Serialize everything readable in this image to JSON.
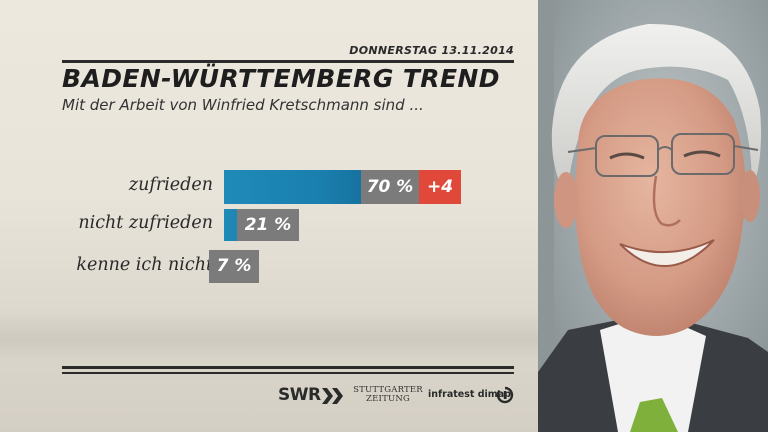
{
  "header": {
    "date": "DONNERSTAG 13.11.2014",
    "title": "BADEN-WÜRTTEMBERG TREND",
    "subtitle": "Mit der Arbeit von Winfried Kretschmann sind ..."
  },
  "chart_data": {
    "type": "bar",
    "orientation": "horizontal",
    "categories": [
      "zufrieden",
      "nicht zufrieden",
      "kenne ich nicht"
    ],
    "values": [
      70,
      21,
      7
    ],
    "value_labels": [
      "70 %",
      "21 %",
      "7 %"
    ],
    "changes": [
      "+4",
      null,
      null
    ],
    "xlim": [
      0,
      100
    ],
    "grid": false,
    "colors": {
      "bar": "#1a7fae",
      "value_box": "#7b7b7b",
      "change_box": "#e0483a"
    }
  },
  "footer": {
    "logo_swr": "SWR",
    "logo_stuttgarter_line1": "Stuttgarter",
    "logo_stuttgarter_line2": "Zeitung",
    "logo_infratest": "infratest dimap"
  }
}
